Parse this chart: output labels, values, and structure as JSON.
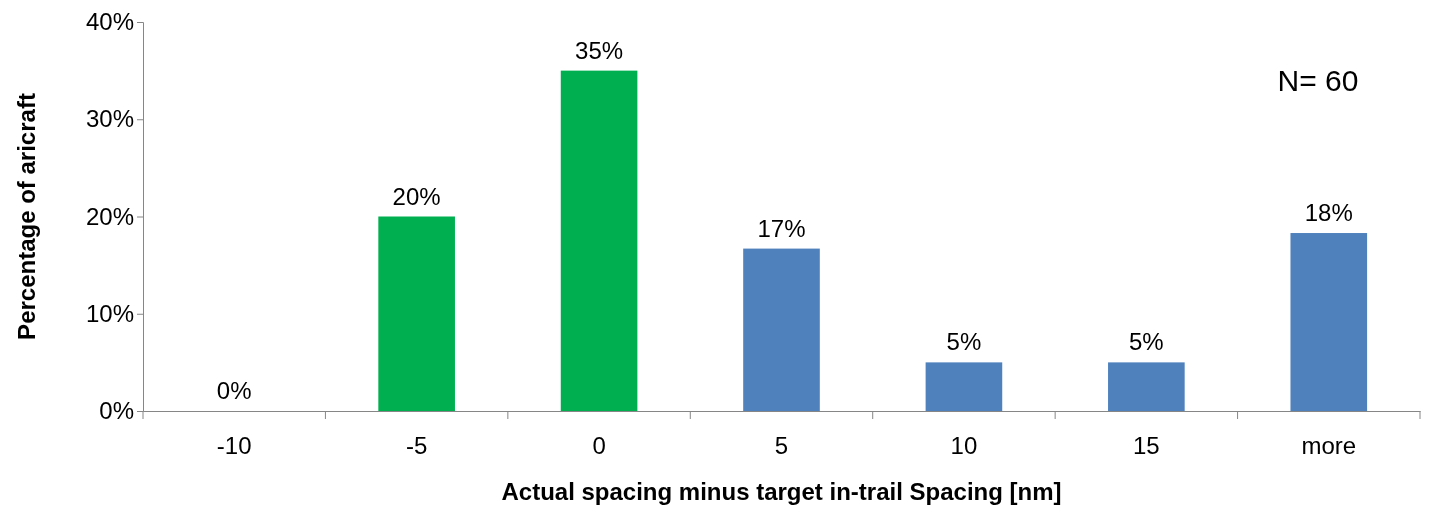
{
  "chart_data": {
    "type": "bar",
    "xlabel": "Actual spacing minus target in-trail Spacing [nm]",
    "ylabel": "Percentage of aricraft",
    "categories": [
      "-10",
      "-5",
      "0",
      "5",
      "10",
      "15",
      "more"
    ],
    "values": [
      0,
      20,
      35,
      16.7,
      5,
      5,
      18.3
    ],
    "value_labels": [
      "0%",
      "20%",
      "35%",
      "17%",
      "5%",
      "5%",
      "18%"
    ],
    "colors": [
      "#00b050",
      "#00b050",
      "#00b050",
      "#4f81bd",
      "#4f81bd",
      "#4f81bd",
      "#4f81bd"
    ],
    "ylim": [
      0,
      40
    ],
    "yticks": [
      {
        "value": 0,
        "label": "0%"
      },
      {
        "value": 10,
        "label": "10%"
      },
      {
        "value": 20,
        "label": "20%"
      },
      {
        "value": 30,
        "label": "30%"
      },
      {
        "value": 40,
        "label": "40%"
      }
    ],
    "grid": false,
    "annotations": [
      "N= 60"
    ]
  }
}
